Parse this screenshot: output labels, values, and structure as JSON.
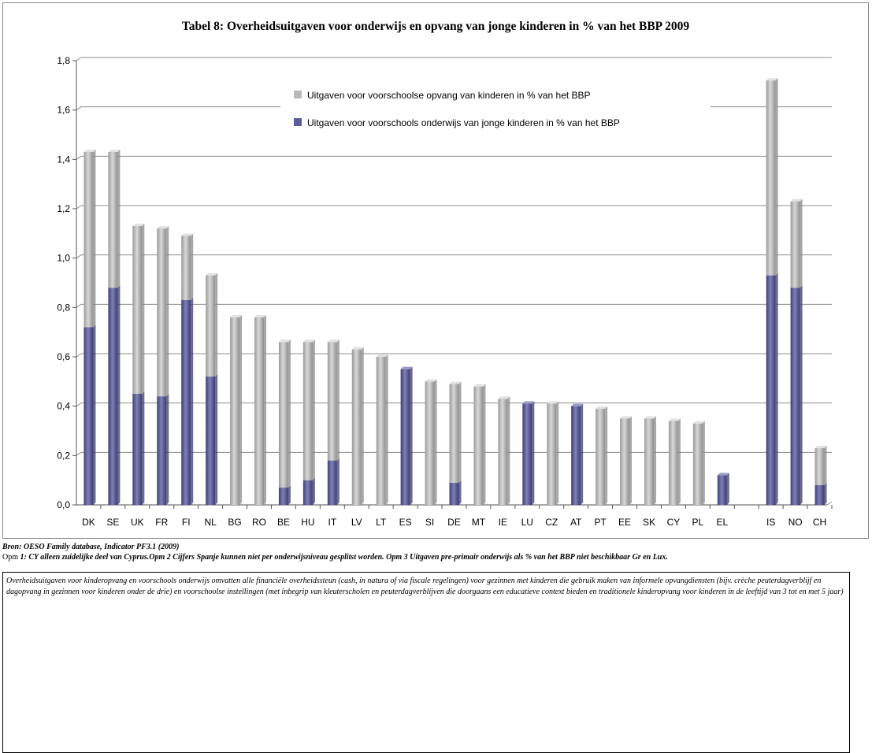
{
  "chart_data": {
    "type": "bar",
    "title": "Tabel 8: Overheidsuitgaven voor onderwijs en opvang van jonge kinderen in % van het BBP 2009",
    "stacked": true,
    "categories": [
      "DK",
      "SE",
      "UK",
      "FR",
      "FI",
      "NL",
      "BG",
      "RO",
      "BE",
      "HU",
      "IT",
      "LV",
      "LT",
      "ES",
      "SI",
      "DE",
      "MT",
      "IE",
      "LU",
      "CZ",
      "AT",
      "PT",
      "EE",
      "SK",
      "CY",
      "PL",
      "EL",
      "",
      "IS",
      "NO",
      "CH"
    ],
    "series": [
      {
        "name": "Uitgaven voor voorschools onderwijs van jonge kinderen in % van het BBP",
        "color": "#5c5c9a",
        "values": [
          0.72,
          0.88,
          0.45,
          0.44,
          0.83,
          0.52,
          0,
          0,
          0.07,
          0.1,
          0.18,
          0,
          0,
          0.55,
          0,
          0.09,
          0,
          0,
          0.41,
          0,
          0.4,
          0,
          0,
          0,
          0,
          0,
          0.12,
          null,
          0.93,
          0.88,
          0.08
        ]
      },
      {
        "name": "Uitgaven voor voorschoolse opvang van kinderen in % van het BBP",
        "color": "#b8b8b8",
        "values": [
          0.71,
          0.55,
          0.68,
          0.68,
          0.26,
          0.41,
          0.76,
          0.76,
          0.59,
          0.56,
          0.48,
          0.63,
          0.6,
          0,
          0.5,
          0.4,
          0.48,
          0.43,
          0,
          0.41,
          0,
          0.39,
          0.35,
          0.35,
          0.34,
          0.33,
          0,
          null,
          0.79,
          0.35,
          0.15
        ]
      }
    ],
    "ylim": [
      0,
      1.8
    ],
    "yticks": [
      "0,0",
      "0,2",
      "0,4",
      "0,6",
      "0,8",
      "1,0",
      "1,2",
      "1,4",
      "1,6",
      "1,8"
    ],
    "grid": true,
    "legend_position": "top-center"
  },
  "notes": {
    "source": "Bron: OESO Family database, Indicator PF3.1 (2009)",
    "opm_prefix": "Opm",
    "opm_body": " 1: CY alleen zuidelijke deel van Cyprus.Opm 2 Cijfers Spanje kunnen niet per onderwijsniveau gesplitst worden. Opm 3 Uitgaven pre-primair onderwijs als % van het BBP niet beschikbaar Gr en Lux.",
    "definition": "Overheidsuitgaven voor kinderopvang en voorschools onderwijs  omvatten alle financiële overheidssteun (cash, in natura of via fiscale regelingen) voor gezinnen met kinderen die gebruik maken van informele opvangdiensten (bijv. crèche peuterdagverblijf en dagopvang in gezinnen voor kinderen onder de drie) en voorschoolse instellingen (met inbegrip van kleuterscholen en peuterdagverblijven die doorgaans een educatieve context bieden en traditionele kinderopvang voor kinderen in de leeftijd van 3 tot en met 5 jaar)"
  }
}
